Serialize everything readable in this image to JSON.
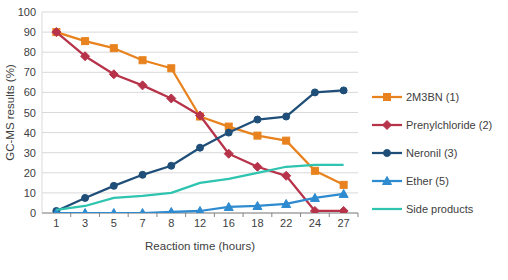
{
  "chart_data": {
    "type": "line",
    "x_label": "Reaction time (hours)",
    "y_label": "GC-MS results (%)",
    "categories": [
      "1",
      "3",
      "5",
      "7",
      "8",
      "12",
      "16",
      "18",
      "22",
      "24",
      "27"
    ],
    "series": [
      {
        "name": "2M3BN (1)",
        "color": "#e8821e",
        "marker": "square",
        "values": [
          90,
          85.5,
          82,
          76,
          72,
          48,
          43,
          38.5,
          36,
          21,
          14
        ]
      },
      {
        "name": "Prenylchloride (2)",
        "color": "#b7334a",
        "marker": "diamond",
        "values": [
          90,
          78,
          69,
          63.5,
          57,
          48.5,
          29.5,
          23,
          18.5,
          1,
          1
        ]
      },
      {
        "name": "Neronil (3)",
        "color": "#1f4e79",
        "marker": "circle",
        "values": [
          1,
          7.5,
          13.5,
          19,
          23.5,
          32.5,
          40,
          46.5,
          48,
          60,
          61
        ]
      },
      {
        "name": "Ether (5)",
        "color": "#2e8bd0",
        "marker": "triangle",
        "values": [
          0,
          0,
          0,
          0,
          0.5,
          1,
          3,
          3.5,
          4.5,
          7.5,
          9.5
        ]
      },
      {
        "name": "Side products",
        "color": "#2ec4b0",
        "marker": "none",
        "values": [
          1.5,
          3.5,
          7.5,
          8.5,
          10,
          15,
          17,
          20,
          23,
          24,
          24
        ]
      }
    ],
    "ylim": [
      0,
      100
    ],
    "yticks": [
      0,
      10,
      20,
      30,
      40,
      50,
      60,
      70,
      80,
      90,
      100
    ],
    "grid": true,
    "legend": "right"
  }
}
